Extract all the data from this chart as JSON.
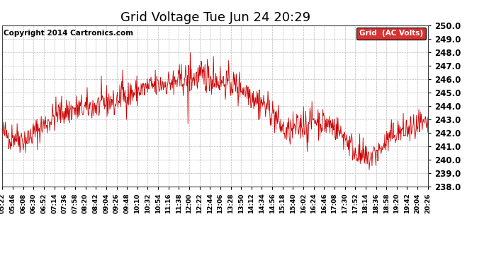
{
  "title": "Grid Voltage Tue Jun 24 20:29",
  "copyright": "Copyright 2014 Cartronics.com",
  "legend_label": "Grid  (AC Volts)",
  "legend_bg": "#cc0000",
  "legend_fg": "#ffffff",
  "line_color": "#cc0000",
  "bg_color": "#ffffff",
  "grid_color": "#bbbbbb",
  "ylim": [
    238.0,
    250.0
  ],
  "ytick_values": [
    238.0,
    239.0,
    240.0,
    241.0,
    242.0,
    243.0,
    244.0,
    245.0,
    246.0,
    247.0,
    248.0,
    249.0,
    250.0
  ],
  "xtick_labels": [
    "05:22",
    "05:46",
    "06:08",
    "06:30",
    "06:52",
    "07:14",
    "07:36",
    "07:58",
    "08:20",
    "08:42",
    "09:04",
    "09:26",
    "09:48",
    "10:10",
    "10:32",
    "10:54",
    "11:16",
    "11:38",
    "12:00",
    "12:22",
    "12:44",
    "13:06",
    "13:28",
    "13:50",
    "14:12",
    "14:34",
    "14:56",
    "15:18",
    "15:40",
    "16:02",
    "16:24",
    "16:46",
    "17:08",
    "17:30",
    "17:52",
    "18:14",
    "18:36",
    "18:58",
    "19:20",
    "19:42",
    "20:04",
    "20:26"
  ],
  "n_points": 900,
  "title_fontsize": 13,
  "copyright_fontsize": 7.5,
  "ytick_fontsize": 8.5,
  "xtick_fontsize": 6.5
}
